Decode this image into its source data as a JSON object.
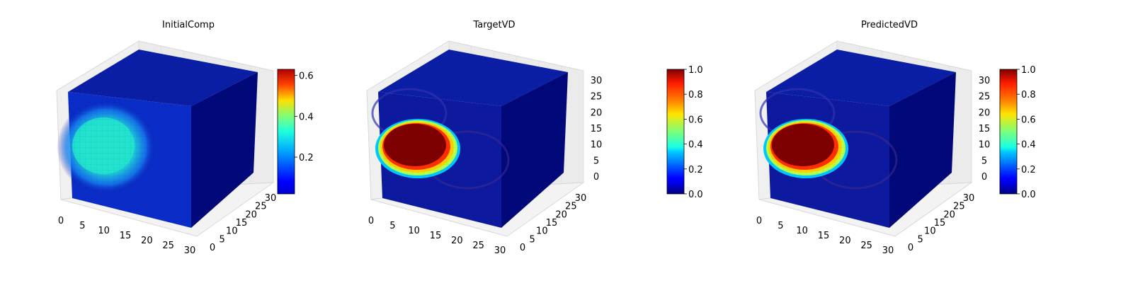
{
  "chart_data": [
    {
      "type": "heatmap",
      "title": "InitialComp",
      "xticks": [
        0,
        5,
        10,
        15,
        20,
        25,
        30
      ],
      "yticks": [
        0,
        5,
        10,
        15,
        20,
        25,
        30
      ],
      "zticks": [],
      "colorbar": {
        "cmap": "jet",
        "min": 0.02,
        "max": 0.63,
        "ticks": [
          "0.2",
          "0.4",
          "0.6"
        ],
        "tickvalues": [
          0.2,
          0.4,
          0.6
        ]
      },
      "blob": {
        "value": 0.35,
        "x_center": 6,
        "z_center": 13
      }
    },
    {
      "type": "heatmap",
      "title": "TargetVD",
      "xticks": [
        0,
        5,
        10,
        15,
        20,
        25,
        30
      ],
      "yticks": [
        0,
        5,
        10,
        15,
        20,
        25,
        30
      ],
      "zticks": [
        0,
        5,
        10,
        15,
        20,
        25,
        30
      ],
      "colorbar": {
        "cmap": "jet",
        "min": 0.0,
        "max": 1.0,
        "ticks": [
          "0.0",
          "0.2",
          "0.4",
          "0.6",
          "0.8",
          "1.0"
        ],
        "tickvalues": [
          0.0,
          0.2,
          0.4,
          0.6,
          0.8,
          1.0
        ]
      },
      "blob": {
        "value": 1.0,
        "x_center": 7,
        "z_center": 13
      }
    },
    {
      "type": "heatmap",
      "title": "PredictedVD",
      "xticks": [
        0,
        5,
        10,
        15,
        20,
        25,
        30
      ],
      "yticks": [
        0,
        5,
        10,
        15,
        20,
        25,
        30
      ],
      "zticks": [
        0,
        5,
        10,
        15,
        20,
        25,
        30
      ],
      "colorbar": {
        "cmap": "jet",
        "min": 0.0,
        "max": 1.0,
        "ticks": [
          "0.0",
          "0.2",
          "0.4",
          "0.6",
          "0.8",
          "1.0"
        ],
        "tickvalues": [
          0.0,
          0.2,
          0.4,
          0.6,
          0.8,
          1.0
        ]
      },
      "blob": {
        "value": 1.0,
        "x_center": 7,
        "z_center": 13
      }
    }
  ]
}
